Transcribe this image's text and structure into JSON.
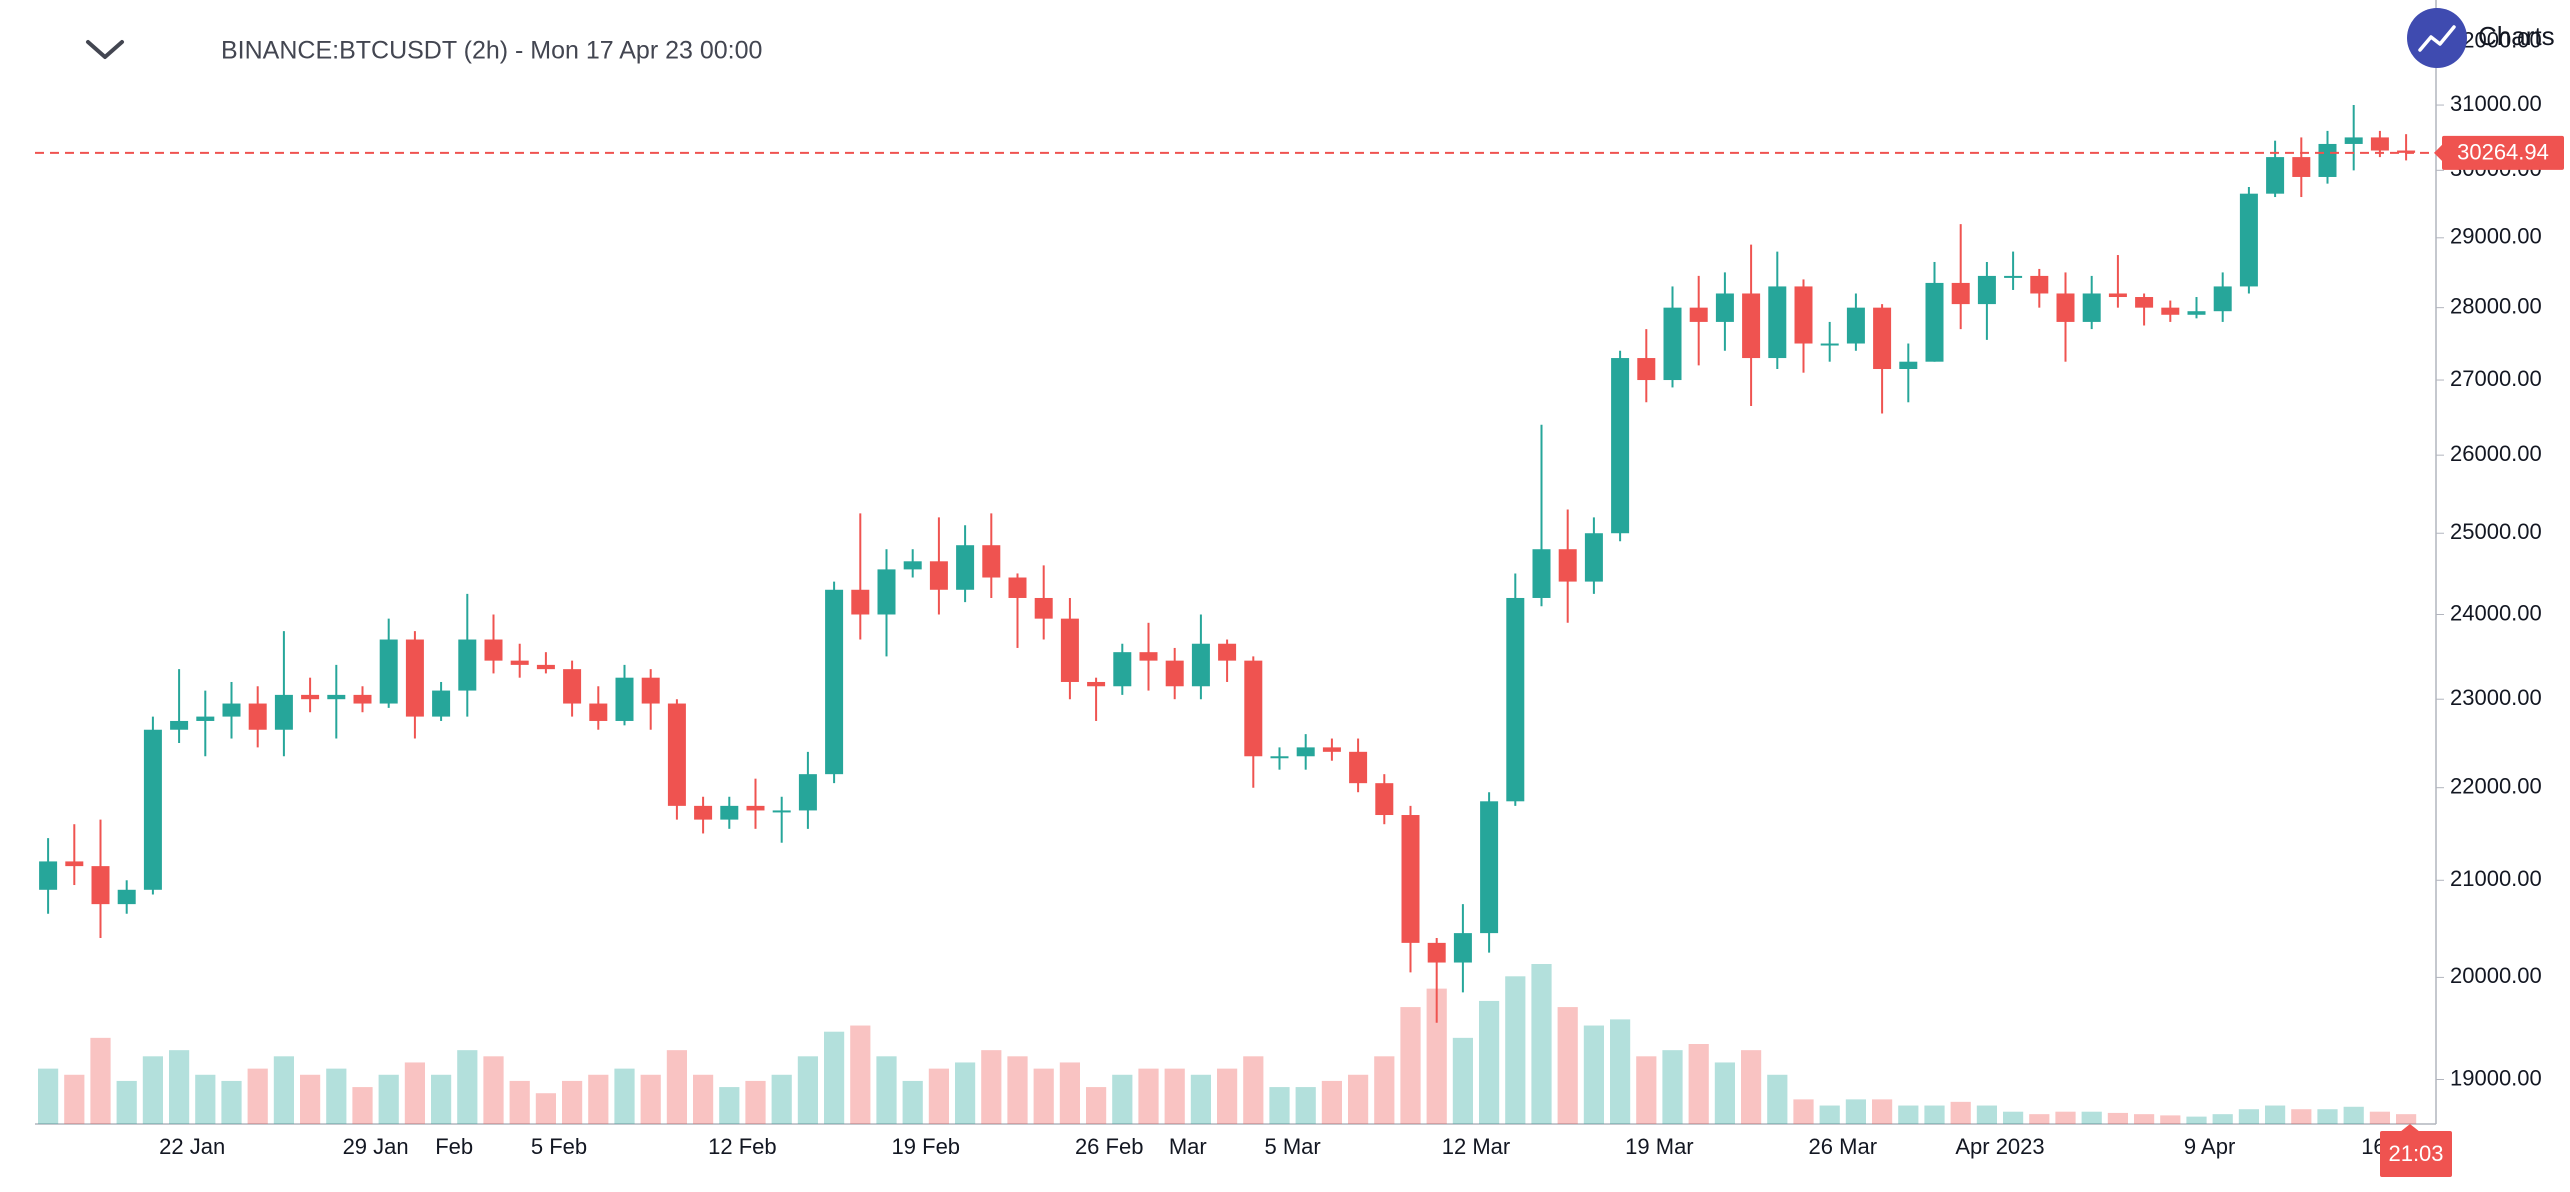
{
  "header": {
    "logo_text": "Charts"
  },
  "chart_data": {
    "type": "candlestick",
    "title": "BINANCE:BTCUSDT (2h) - Mon 17 Apr 23 00:00",
    "categories": [
      null,
      null,
      null,
      null,
      null,
      null,
      "22 Jan",
      null,
      null,
      null,
      null,
      null,
      null,
      "29 Jan",
      null,
      null,
      "Feb",
      null,
      null,
      null,
      "5 Feb",
      null,
      null,
      null,
      null,
      null,
      null,
      "12 Feb",
      null,
      null,
      null,
      null,
      null,
      null,
      "19 Feb",
      null,
      null,
      null,
      null,
      null,
      null,
      "26 Feb",
      null,
      null,
      "Mar",
      null,
      null,
      null,
      "5 Mar",
      null,
      null,
      null,
      null,
      null,
      null,
      "12 Mar",
      null,
      null,
      null,
      null,
      null,
      null,
      "19 Mar",
      null,
      null,
      null,
      null,
      null,
      null,
      "26 Mar",
      null,
      null,
      null,
      null,
      null,
      "Apr 2023",
      null,
      null,
      null,
      null,
      null,
      null,
      null,
      "9 Apr",
      null,
      null,
      null,
      null,
      null,
      null,
      "16 Apr"
    ],
    "open": [
      20900,
      21200,
      21150,
      20750,
      20900,
      22650,
      22750,
      22800,
      22950,
      22650,
      23050,
      23000,
      23050,
      22950,
      23700,
      22800,
      23100,
      23700,
      23450,
      23400,
      23350,
      22950,
      22750,
      23250,
      22950,
      21800,
      21650,
      21800,
      21750,
      21750,
      22150,
      24300,
      24000,
      24550,
      24650,
      24300,
      24850,
      24450,
      24200,
      23950,
      23200,
      23150,
      23550,
      23450,
      23150,
      23650,
      23450,
      22350,
      22350,
      22450,
      22400,
      22050,
      21700,
      20350,
      20150,
      20450,
      21850,
      24200,
      24800,
      24400,
      25000,
      27300,
      27000,
      28000,
      27800,
      28200,
      27300,
      28300,
      27500,
      27500,
      28000,
      27150,
      27250,
      28350,
      28050,
      28450,
      28450,
      28200,
      27800,
      28200,
      28150,
      28000,
      27900,
      27950,
      28300,
      29650,
      30200,
      29900,
      30400,
      30500,
      30300
    ],
    "high": [
      21450,
      21600,
      21650,
      21000,
      22800,
      23350,
      23100,
      23200,
      23150,
      23800,
      23250,
      23400,
      23150,
      23950,
      23800,
      23200,
      24250,
      24000,
      23650,
      23550,
      23450,
      23150,
      23400,
      23350,
      23000,
      21900,
      21900,
      22100,
      21900,
      22400,
      24400,
      25250,
      24800,
      24800,
      25200,
      25100,
      25250,
      24500,
      24600,
      24200,
      23250,
      23650,
      23900,
      23600,
      24000,
      23700,
      23500,
      22450,
      22600,
      22550,
      22550,
      22150,
      21800,
      20400,
      20750,
      21950,
      24500,
      26400,
      25300,
      25200,
      27400,
      27700,
      28300,
      28450,
      28500,
      28900,
      28800,
      28400,
      27800,
      28200,
      28050,
      27500,
      28650,
      29200,
      28650,
      28800,
      28550,
      28500,
      28450,
      28750,
      28200,
      28100,
      28150,
      28500,
      29750,
      30450,
      30500,
      30600,
      31000,
      30600,
      30550
    ],
    "low": [
      20650,
      20950,
      20400,
      20650,
      20850,
      22500,
      22350,
      22550,
      22450,
      22350,
      22850,
      22550,
      22850,
      22900,
      22550,
      22750,
      22800,
      23300,
      23250,
      23300,
      22800,
      22650,
      22700,
      22650,
      21650,
      21500,
      21550,
      21550,
      21400,
      21550,
      22050,
      23700,
      23500,
      24450,
      24000,
      24150,
      24200,
      23600,
      23700,
      23000,
      22750,
      23050,
      23100,
      23000,
      23000,
      23200,
      22000,
      22200,
      22200,
      22300,
      21950,
      21600,
      20050,
      19550,
      19850,
      20250,
      21800,
      24100,
      23900,
      24250,
      24900,
      26700,
      26900,
      27200,
      27400,
      26650,
      27150,
      27100,
      27250,
      27400,
      26550,
      26700,
      27250,
      27700,
      27550,
      28250,
      28000,
      27250,
      27700,
      28000,
      27750,
      27800,
      27850,
      27800,
      28200,
      29600,
      29600,
      29800,
      30000,
      30200,
      30150
    ],
    "close": [
      21200,
      21150,
      20750,
      20900,
      22650,
      22750,
      22800,
      22950,
      22650,
      23050,
      23000,
      23050,
      22950,
      23700,
      22800,
      23100,
      23700,
      23450,
      23400,
      23350,
      22950,
      22750,
      23250,
      22950,
      21800,
      21650,
      21800,
      21750,
      21750,
      22150,
      24300,
      24000,
      24550,
      24650,
      24300,
      24850,
      24450,
      24200,
      23950,
      23200,
      23150,
      23550,
      23450,
      23150,
      23650,
      23450,
      22350,
      22350,
      22450,
      22400,
      22050,
      21700,
      20350,
      20150,
      20450,
      21850,
      24200,
      24800,
      24400,
      25000,
      27300,
      27000,
      28000,
      27800,
      28200,
      27300,
      28300,
      27500,
      27500,
      28000,
      27150,
      27250,
      28350,
      28050,
      28450,
      28450,
      28200,
      27800,
      28200,
      28150,
      28000,
      27900,
      27950,
      28300,
      29650,
      30200,
      29900,
      30400,
      30500,
      30300,
      30264.94
    ],
    "volume": [
      45,
      40,
      70,
      35,
      55,
      60,
      40,
      35,
      45,
      55,
      40,
      45,
      30,
      40,
      50,
      40,
      60,
      55,
      35,
      25,
      35,
      40,
      45,
      40,
      60,
      40,
      30,
      35,
      40,
      55,
      75,
      80,
      55,
      35,
      45,
      50,
      60,
      55,
      45,
      50,
      30,
      40,
      45,
      45,
      40,
      45,
      55,
      30,
      30,
      35,
      40,
      55,
      95,
      110,
      70,
      100,
      120,
      130,
      95,
      80,
      85,
      55,
      60,
      65,
      50,
      60,
      40,
      20,
      15,
      20,
      20,
      15,
      15,
      18,
      15,
      10,
      8,
      10,
      10,
      9,
      8,
      7,
      6,
      8,
      12,
      15,
      12,
      12,
      14,
      10,
      8
    ],
    "up_color": "#26a69a",
    "down_color": "#ef5350",
    "log_scale": true,
    "grid": false,
    "ylim": [
      18580,
      32680
    ],
    "yticks": [
      {
        "value": 19000,
        "label": "19000.00"
      },
      {
        "value": 20000,
        "label": "20000.00"
      },
      {
        "value": 21000,
        "label": "21000.00"
      },
      {
        "value": 22000,
        "label": "22000.00"
      },
      {
        "value": 23000,
        "label": "23000.00"
      },
      {
        "value": 24000,
        "label": "24000.00"
      },
      {
        "value": 25000,
        "label": "25000.00"
      },
      {
        "value": 26000,
        "label": "26000.00"
      },
      {
        "value": 27000,
        "label": "27000.00"
      },
      {
        "value": 28000,
        "label": "28000.00"
      },
      {
        "value": 29000,
        "label": "29000.00"
      },
      {
        "value": 30000,
        "label": "30000.00"
      },
      {
        "value": 31000,
        "label": "31000.00"
      },
      {
        "value": 32000,
        "label": "32000.00"
      }
    ],
    "last_price": 30264.94,
    "time_label": "21:03"
  }
}
